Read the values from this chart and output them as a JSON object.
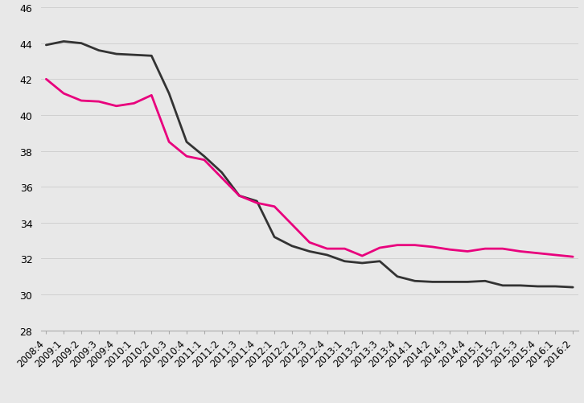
{
  "x_labels": [
    "2008:4",
    "2009:1",
    "2009:2",
    "2009:3",
    "2009:4",
    "2010:1",
    "2010:2",
    "2010:3",
    "2010:4",
    "2011:1",
    "2011:2",
    "2011:3",
    "2011:4",
    "2012:1",
    "2012:2",
    "2012:3",
    "2012:4",
    "2013:1",
    "2013:2",
    "2013:3",
    "2013:4",
    "2014:1",
    "2014:2",
    "2014:3",
    "2014:4",
    "2015:1",
    "2015:2",
    "2015:3",
    "2015:4",
    "2016:1",
    "2016:2"
  ],
  "black_line": [
    43.9,
    44.1,
    44.0,
    43.6,
    43.4,
    43.35,
    43.3,
    41.2,
    38.5,
    37.7,
    36.8,
    35.5,
    35.2,
    33.2,
    32.7,
    32.4,
    32.2,
    31.85,
    31.75,
    31.85,
    31.0,
    30.75,
    30.7,
    30.7,
    30.7,
    30.75,
    30.5,
    30.5,
    30.45,
    30.45,
    30.4
  ],
  "pink_line": [
    42.0,
    41.2,
    40.8,
    40.75,
    40.5,
    40.65,
    41.1,
    38.5,
    37.7,
    37.5,
    36.5,
    35.5,
    35.1,
    34.9,
    33.9,
    32.9,
    32.55,
    32.55,
    32.15,
    32.6,
    32.75,
    32.75,
    32.65,
    32.5,
    32.4,
    32.55,
    32.55,
    32.4,
    32.3,
    32.2,
    32.1
  ],
  "black_color": "#333333",
  "pink_color": "#e8007d",
  "background_color": "#e8e8e8",
  "ylim": [
    28,
    46
  ],
  "yticks": [
    28,
    30,
    32,
    34,
    36,
    38,
    40,
    42,
    44,
    46
  ],
  "linewidth": 2.0,
  "grid_color": "#d0d0d0",
  "tick_color": "#aaaaaa",
  "tick_fontsize": 8.5,
  "ytick_fontsize": 9
}
